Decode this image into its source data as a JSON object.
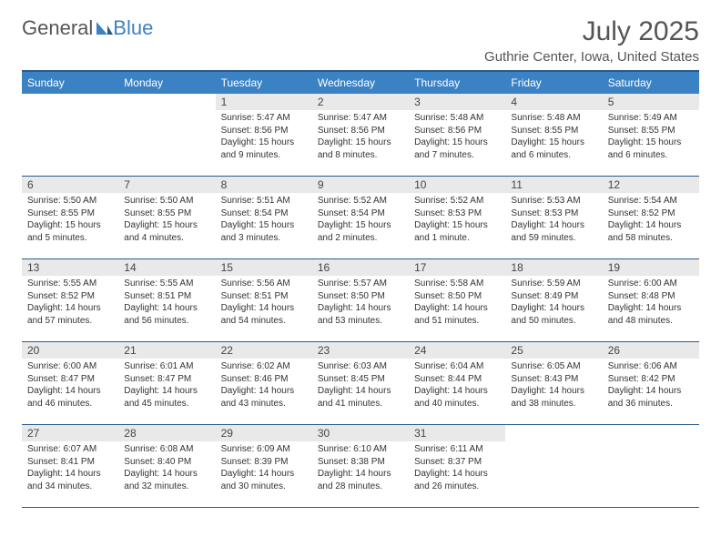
{
  "brand": {
    "part1": "General",
    "part2": "Blue"
  },
  "title": "July 2025",
  "location": "Guthrie Center, Iowa, United States",
  "colors": {
    "header_bg": "#3b82c4",
    "header_text": "#ffffff",
    "border": "#2a5a8a",
    "daynum_bg": "#e9e9e9",
    "text": "#333333",
    "title_text": "#555555"
  },
  "weekdays": [
    "Sunday",
    "Monday",
    "Tuesday",
    "Wednesday",
    "Thursday",
    "Friday",
    "Saturday"
  ],
  "weeks": [
    [
      {
        "empty": true
      },
      {
        "empty": true
      },
      {
        "num": "1",
        "sunrise": "Sunrise: 5:47 AM",
        "sunset": "Sunset: 8:56 PM",
        "dl1": "Daylight: 15 hours",
        "dl2": "and 9 minutes."
      },
      {
        "num": "2",
        "sunrise": "Sunrise: 5:47 AM",
        "sunset": "Sunset: 8:56 PM",
        "dl1": "Daylight: 15 hours",
        "dl2": "and 8 minutes."
      },
      {
        "num": "3",
        "sunrise": "Sunrise: 5:48 AM",
        "sunset": "Sunset: 8:56 PM",
        "dl1": "Daylight: 15 hours",
        "dl2": "and 7 minutes."
      },
      {
        "num": "4",
        "sunrise": "Sunrise: 5:48 AM",
        "sunset": "Sunset: 8:55 PM",
        "dl1": "Daylight: 15 hours",
        "dl2": "and 6 minutes."
      },
      {
        "num": "5",
        "sunrise": "Sunrise: 5:49 AM",
        "sunset": "Sunset: 8:55 PM",
        "dl1": "Daylight: 15 hours",
        "dl2": "and 6 minutes."
      }
    ],
    [
      {
        "num": "6",
        "sunrise": "Sunrise: 5:50 AM",
        "sunset": "Sunset: 8:55 PM",
        "dl1": "Daylight: 15 hours",
        "dl2": "and 5 minutes."
      },
      {
        "num": "7",
        "sunrise": "Sunrise: 5:50 AM",
        "sunset": "Sunset: 8:55 PM",
        "dl1": "Daylight: 15 hours",
        "dl2": "and 4 minutes."
      },
      {
        "num": "8",
        "sunrise": "Sunrise: 5:51 AM",
        "sunset": "Sunset: 8:54 PM",
        "dl1": "Daylight: 15 hours",
        "dl2": "and 3 minutes."
      },
      {
        "num": "9",
        "sunrise": "Sunrise: 5:52 AM",
        "sunset": "Sunset: 8:54 PM",
        "dl1": "Daylight: 15 hours",
        "dl2": "and 2 minutes."
      },
      {
        "num": "10",
        "sunrise": "Sunrise: 5:52 AM",
        "sunset": "Sunset: 8:53 PM",
        "dl1": "Daylight: 15 hours",
        "dl2": "and 1 minute."
      },
      {
        "num": "11",
        "sunrise": "Sunrise: 5:53 AM",
        "sunset": "Sunset: 8:53 PM",
        "dl1": "Daylight: 14 hours",
        "dl2": "and 59 minutes."
      },
      {
        "num": "12",
        "sunrise": "Sunrise: 5:54 AM",
        "sunset": "Sunset: 8:52 PM",
        "dl1": "Daylight: 14 hours",
        "dl2": "and 58 minutes."
      }
    ],
    [
      {
        "num": "13",
        "sunrise": "Sunrise: 5:55 AM",
        "sunset": "Sunset: 8:52 PM",
        "dl1": "Daylight: 14 hours",
        "dl2": "and 57 minutes."
      },
      {
        "num": "14",
        "sunrise": "Sunrise: 5:55 AM",
        "sunset": "Sunset: 8:51 PM",
        "dl1": "Daylight: 14 hours",
        "dl2": "and 56 minutes."
      },
      {
        "num": "15",
        "sunrise": "Sunrise: 5:56 AM",
        "sunset": "Sunset: 8:51 PM",
        "dl1": "Daylight: 14 hours",
        "dl2": "and 54 minutes."
      },
      {
        "num": "16",
        "sunrise": "Sunrise: 5:57 AM",
        "sunset": "Sunset: 8:50 PM",
        "dl1": "Daylight: 14 hours",
        "dl2": "and 53 minutes."
      },
      {
        "num": "17",
        "sunrise": "Sunrise: 5:58 AM",
        "sunset": "Sunset: 8:50 PM",
        "dl1": "Daylight: 14 hours",
        "dl2": "and 51 minutes."
      },
      {
        "num": "18",
        "sunrise": "Sunrise: 5:59 AM",
        "sunset": "Sunset: 8:49 PM",
        "dl1": "Daylight: 14 hours",
        "dl2": "and 50 minutes."
      },
      {
        "num": "19",
        "sunrise": "Sunrise: 6:00 AM",
        "sunset": "Sunset: 8:48 PM",
        "dl1": "Daylight: 14 hours",
        "dl2": "and 48 minutes."
      }
    ],
    [
      {
        "num": "20",
        "sunrise": "Sunrise: 6:00 AM",
        "sunset": "Sunset: 8:47 PM",
        "dl1": "Daylight: 14 hours",
        "dl2": "and 46 minutes."
      },
      {
        "num": "21",
        "sunrise": "Sunrise: 6:01 AM",
        "sunset": "Sunset: 8:47 PM",
        "dl1": "Daylight: 14 hours",
        "dl2": "and 45 minutes."
      },
      {
        "num": "22",
        "sunrise": "Sunrise: 6:02 AM",
        "sunset": "Sunset: 8:46 PM",
        "dl1": "Daylight: 14 hours",
        "dl2": "and 43 minutes."
      },
      {
        "num": "23",
        "sunrise": "Sunrise: 6:03 AM",
        "sunset": "Sunset: 8:45 PM",
        "dl1": "Daylight: 14 hours",
        "dl2": "and 41 minutes."
      },
      {
        "num": "24",
        "sunrise": "Sunrise: 6:04 AM",
        "sunset": "Sunset: 8:44 PM",
        "dl1": "Daylight: 14 hours",
        "dl2": "and 40 minutes."
      },
      {
        "num": "25",
        "sunrise": "Sunrise: 6:05 AM",
        "sunset": "Sunset: 8:43 PM",
        "dl1": "Daylight: 14 hours",
        "dl2": "and 38 minutes."
      },
      {
        "num": "26",
        "sunrise": "Sunrise: 6:06 AM",
        "sunset": "Sunset: 8:42 PM",
        "dl1": "Daylight: 14 hours",
        "dl2": "and 36 minutes."
      }
    ],
    [
      {
        "num": "27",
        "sunrise": "Sunrise: 6:07 AM",
        "sunset": "Sunset: 8:41 PM",
        "dl1": "Daylight: 14 hours",
        "dl2": "and 34 minutes."
      },
      {
        "num": "28",
        "sunrise": "Sunrise: 6:08 AM",
        "sunset": "Sunset: 8:40 PM",
        "dl1": "Daylight: 14 hours",
        "dl2": "and 32 minutes."
      },
      {
        "num": "29",
        "sunrise": "Sunrise: 6:09 AM",
        "sunset": "Sunset: 8:39 PM",
        "dl1": "Daylight: 14 hours",
        "dl2": "and 30 minutes."
      },
      {
        "num": "30",
        "sunrise": "Sunrise: 6:10 AM",
        "sunset": "Sunset: 8:38 PM",
        "dl1": "Daylight: 14 hours",
        "dl2": "and 28 minutes."
      },
      {
        "num": "31",
        "sunrise": "Sunrise: 6:11 AM",
        "sunset": "Sunset: 8:37 PM",
        "dl1": "Daylight: 14 hours",
        "dl2": "and 26 minutes."
      },
      {
        "empty": true
      },
      {
        "empty": true
      }
    ]
  ]
}
